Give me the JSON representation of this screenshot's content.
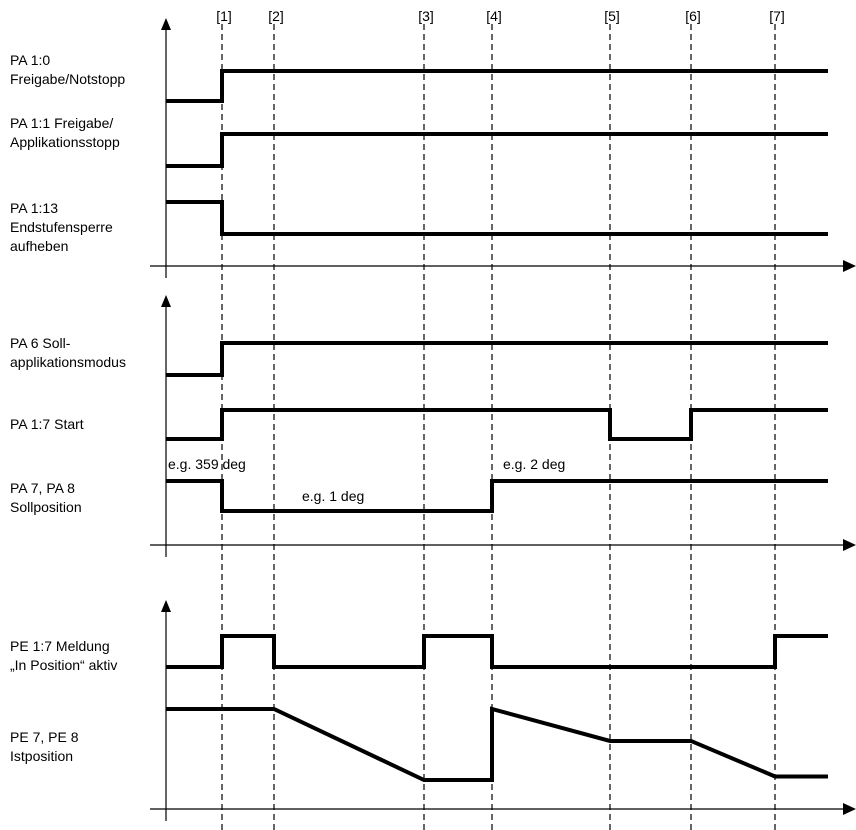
{
  "events": [
    "[1]",
    "[2]",
    "[3]",
    "[4]",
    "[5]",
    "[6]",
    "[7]"
  ],
  "panels": [
    {
      "signals": [
        {
          "label": "PA 1:0\nFreigabe/Notstopp",
          "points": [
            [
              0,
              0
            ],
            [
              1,
              0
            ],
            [
              1,
              1
            ],
            [
              8,
              1
            ]
          ]
        },
        {
          "label": "PA 1:1 Freigabe/\nApplikationsstopp",
          "points": [
            [
              0,
              0
            ],
            [
              1,
              0
            ],
            [
              1,
              1
            ],
            [
              8,
              1
            ]
          ]
        },
        {
          "label": "PA 1:13\nEndstufensperre\naufheben",
          "points": [
            [
              0,
              1
            ],
            [
              1,
              1
            ],
            [
              1,
              0
            ],
            [
              8,
              0
            ]
          ]
        }
      ]
    },
    {
      "signals": [
        {
          "label": "PA 6 Soll-\napplikationsmodus",
          "points": [
            [
              0,
              0
            ],
            [
              1,
              0
            ],
            [
              1,
              1
            ],
            [
              8,
              1
            ]
          ]
        },
        {
          "label": "PA 1:7 Start",
          "points": [
            [
              0,
              0
            ],
            [
              1,
              0
            ],
            [
              1,
              1
            ],
            [
              5,
              1
            ],
            [
              5,
              0
            ],
            [
              6,
              0
            ],
            [
              6,
              1
            ],
            [
              8,
              1
            ]
          ]
        },
        {
          "label": "PA 7, PA 8\nSollposition",
          "points": [
            [
              0,
              1
            ],
            [
              1,
              1
            ],
            [
              1,
              0
            ],
            [
              4,
              0
            ],
            [
              4,
              1
            ],
            [
              8,
              1
            ]
          ],
          "annotations": [
            "e.g. 359 deg",
            "e.g. 1 deg",
            "e.g. 2 deg"
          ]
        }
      ]
    },
    {
      "signals": [
        {
          "label": "PE 1:7 Meldung\n„In Position“ aktiv",
          "points": [
            [
              0,
              0
            ],
            [
              1,
              0
            ],
            [
              1,
              1
            ],
            [
              2,
              1
            ],
            [
              2,
              0
            ],
            [
              3,
              0
            ],
            [
              3,
              1
            ],
            [
              4,
              1
            ],
            [
              4,
              0
            ],
            [
              7,
              0
            ],
            [
              7,
              1
            ],
            [
              8,
              1
            ]
          ]
        },
        {
          "label": "PE 7, PE 8\nIstposition",
          "points": [
            [
              0,
              1
            ],
            [
              2,
              1
            ],
            [
              3,
              0
            ],
            [
              4,
              0
            ],
            [
              4,
              1
            ],
            [
              5,
              0.55
            ],
            [
              6,
              0.55
            ],
            [
              7,
              0.05
            ],
            [
              8,
              0.05
            ]
          ]
        }
      ]
    }
  ],
  "colors": {
    "line": "#000000"
  }
}
